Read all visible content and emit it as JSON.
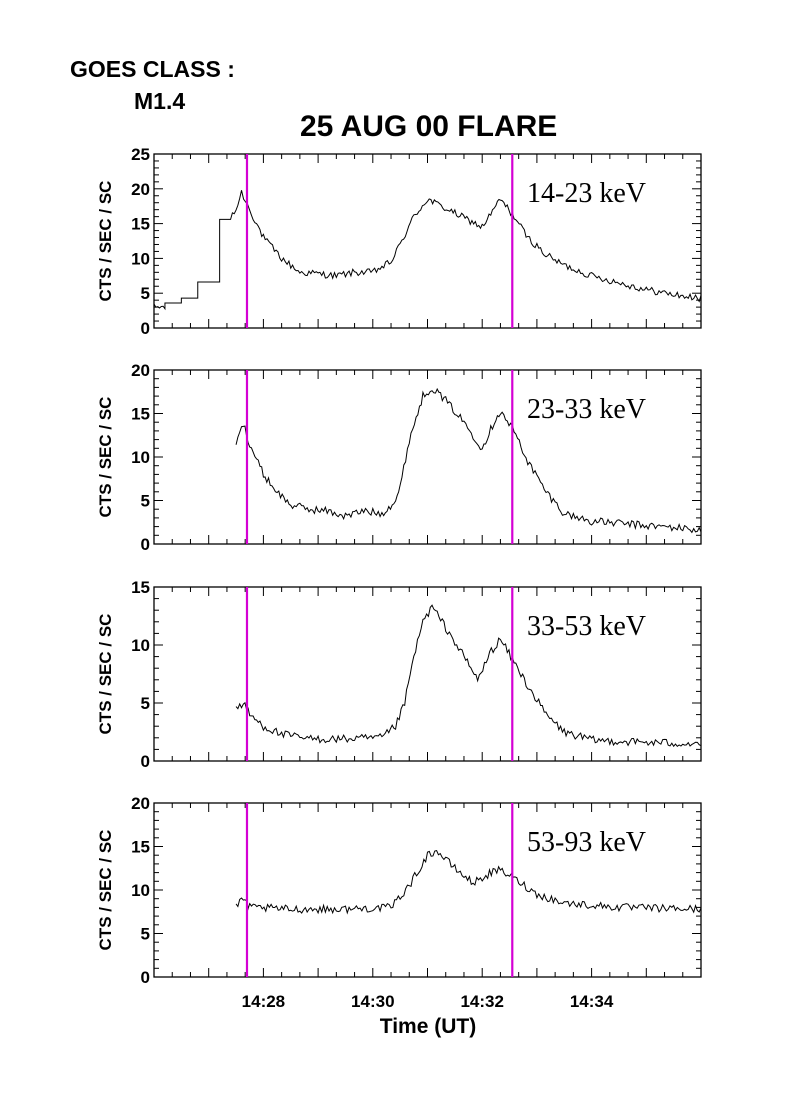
{
  "header": {
    "goes_label": "GOES CLASS :",
    "goes_class": "M1.4",
    "title": "25 AUG 00 FLARE"
  },
  "chart_data": {
    "type": "line",
    "x_unit": "minutes (UT)",
    "xlim": [
      "14:26:00",
      "14:36:00"
    ],
    "x_tick_labels": [
      "14:28",
      "14:30",
      "14:32",
      "14:34"
    ],
    "xlabel": "Time (UT)",
    "ylabel": "CTS / SEC / SC",
    "marker_color": "#d400d4",
    "vertical_markers_ut": [
      "14:27:42",
      "14:32:33"
    ],
    "grid": false,
    "panels": [
      {
        "band": "14-23 keV",
        "ylim": [
          0,
          25
        ],
        "yticks": [
          0,
          5,
          10,
          15,
          20,
          25
        ],
        "noise": 0.5,
        "series": [
          {
            "t": "14:26:00",
            "v": 3.0
          },
          {
            "t": "14:26:12",
            "v": 3.0
          },
          {
            "t": "14:26:12",
            "v": 3.6
          },
          {
            "t": "14:26:30",
            "v": 3.6
          },
          {
            "t": "14:26:30",
            "v": 4.3
          },
          {
            "t": "14:26:48",
            "v": 4.3
          },
          {
            "t": "14:26:48",
            "v": 6.6
          },
          {
            "t": "14:27:12",
            "v": 6.6
          },
          {
            "t": "14:27:12",
            "v": 15.6
          },
          {
            "t": "14:27:24",
            "v": 15.6
          },
          {
            "t": "14:27:30",
            "v": 17.0
          },
          {
            "t": "14:27:36",
            "v": 19.5
          },
          {
            "t": "14:27:45",
            "v": 17.0
          },
          {
            "t": "14:28:00",
            "v": 13.0
          },
          {
            "t": "14:28:20",
            "v": 10.0
          },
          {
            "t": "14:28:40",
            "v": 8.0
          },
          {
            "t": "14:29:00",
            "v": 7.8
          },
          {
            "t": "14:29:20",
            "v": 7.5
          },
          {
            "t": "14:29:40",
            "v": 8.0
          },
          {
            "t": "14:30:00",
            "v": 8.0
          },
          {
            "t": "14:30:20",
            "v": 9.5
          },
          {
            "t": "14:30:30",
            "v": 12.0
          },
          {
            "t": "14:30:45",
            "v": 16.0
          },
          {
            "t": "14:31:00",
            "v": 18.5
          },
          {
            "t": "14:31:15",
            "v": 17.5
          },
          {
            "t": "14:31:30",
            "v": 16.5
          },
          {
            "t": "14:31:45",
            "v": 15.5
          },
          {
            "t": "14:32:00",
            "v": 14.5
          },
          {
            "t": "14:32:15",
            "v": 17.5
          },
          {
            "t": "14:32:20",
            "v": 18.5
          },
          {
            "t": "14:32:35",
            "v": 16.0
          },
          {
            "t": "14:32:50",
            "v": 13.0
          },
          {
            "t": "14:33:10",
            "v": 10.5
          },
          {
            "t": "14:33:30",
            "v": 9.0
          },
          {
            "t": "14:34:00",
            "v": 7.5
          },
          {
            "t": "14:34:30",
            "v": 6.5
          },
          {
            "t": "14:35:00",
            "v": 5.5
          },
          {
            "t": "14:35:30",
            "v": 4.8
          },
          {
            "t": "14:36:00",
            "v": 4.2
          }
        ]
      },
      {
        "band": "23-33 keV",
        "ylim": [
          0,
          20
        ],
        "yticks": [
          0,
          5,
          10,
          15,
          20
        ],
        "noise": 0.45,
        "series": [
          {
            "t": "14:27:30",
            "v": 11.5
          },
          {
            "t": "14:27:38",
            "v": 13.8
          },
          {
            "t": "14:27:45",
            "v": 11.5
          },
          {
            "t": "14:28:00",
            "v": 8.0
          },
          {
            "t": "14:28:15",
            "v": 6.0
          },
          {
            "t": "14:28:30",
            "v": 4.5
          },
          {
            "t": "14:28:50",
            "v": 4.0
          },
          {
            "t": "14:29:10",
            "v": 3.8
          },
          {
            "t": "14:29:30",
            "v": 3.2
          },
          {
            "t": "14:29:50",
            "v": 3.8
          },
          {
            "t": "14:30:10",
            "v": 3.5
          },
          {
            "t": "14:30:25",
            "v": 5.0
          },
          {
            "t": "14:30:30",
            "v": 6.5
          },
          {
            "t": "14:30:40",
            "v": 12.0
          },
          {
            "t": "14:30:55",
            "v": 17.0
          },
          {
            "t": "14:31:05",
            "v": 18.0
          },
          {
            "t": "14:31:20",
            "v": 16.5
          },
          {
            "t": "14:31:40",
            "v": 14.0
          },
          {
            "t": "14:32:00",
            "v": 11.0
          },
          {
            "t": "14:32:15",
            "v": 14.5
          },
          {
            "t": "14:32:20",
            "v": 15.2
          },
          {
            "t": "14:32:35",
            "v": 13.0
          },
          {
            "t": "14:32:50",
            "v": 9.5
          },
          {
            "t": "14:33:10",
            "v": 6.0
          },
          {
            "t": "14:33:30",
            "v": 3.5
          },
          {
            "t": "14:34:00",
            "v": 2.6
          },
          {
            "t": "14:34:30",
            "v": 2.4
          },
          {
            "t": "14:35:00",
            "v": 2.1
          },
          {
            "t": "14:35:30",
            "v": 1.9
          },
          {
            "t": "14:36:00",
            "v": 1.6
          }
        ]
      },
      {
        "band": "33-53 keV",
        "ylim": [
          0,
          15
        ],
        "yticks": [
          0,
          5,
          10,
          15
        ],
        "noise": 0.35,
        "series": [
          {
            "t": "14:27:30",
            "v": 4.5
          },
          {
            "t": "14:27:38",
            "v": 5.0
          },
          {
            "t": "14:27:45",
            "v": 4.0
          },
          {
            "t": "14:28:00",
            "v": 3.0
          },
          {
            "t": "14:28:20",
            "v": 2.3
          },
          {
            "t": "14:28:50",
            "v": 1.9
          },
          {
            "t": "14:29:30",
            "v": 1.9
          },
          {
            "t": "14:30:10",
            "v": 2.0
          },
          {
            "t": "14:30:25",
            "v": 3.0
          },
          {
            "t": "14:30:35",
            "v": 5.0
          },
          {
            "t": "14:30:45",
            "v": 9.0
          },
          {
            "t": "14:30:55",
            "v": 12.0
          },
          {
            "t": "14:31:05",
            "v": 13.3
          },
          {
            "t": "14:31:20",
            "v": 11.5
          },
          {
            "t": "14:31:40",
            "v": 9.0
          },
          {
            "t": "14:31:55",
            "v": 7.0
          },
          {
            "t": "14:32:10",
            "v": 9.5
          },
          {
            "t": "14:32:20",
            "v": 10.5
          },
          {
            "t": "14:32:35",
            "v": 8.5
          },
          {
            "t": "14:32:50",
            "v": 6.5
          },
          {
            "t": "14:33:10",
            "v": 4.0
          },
          {
            "t": "14:33:30",
            "v": 2.5
          },
          {
            "t": "14:34:00",
            "v": 1.8
          },
          {
            "t": "14:35:00",
            "v": 1.6
          },
          {
            "t": "14:36:00",
            "v": 1.5
          }
        ]
      },
      {
        "band": "53-93 keV",
        "ylim": [
          0,
          20
        ],
        "yticks": [
          0,
          5,
          10,
          15,
          20
        ],
        "noise": 0.45,
        "series": [
          {
            "t": "14:27:30",
            "v": 8.0
          },
          {
            "t": "14:27:38",
            "v": 9.0
          },
          {
            "t": "14:27:45",
            "v": 8.0
          },
          {
            "t": "14:28:30",
            "v": 7.8
          },
          {
            "t": "14:29:30",
            "v": 7.8
          },
          {
            "t": "14:30:20",
            "v": 8.0
          },
          {
            "t": "14:30:40",
            "v": 10.5
          },
          {
            "t": "14:31:00",
            "v": 14.0
          },
          {
            "t": "14:31:10",
            "v": 14.5
          },
          {
            "t": "14:31:30",
            "v": 12.5
          },
          {
            "t": "14:31:50",
            "v": 10.8
          },
          {
            "t": "14:32:10",
            "v": 12.0
          },
          {
            "t": "14:32:20",
            "v": 12.3
          },
          {
            "t": "14:32:40",
            "v": 11.0
          },
          {
            "t": "14:33:00",
            "v": 9.5
          },
          {
            "t": "14:33:30",
            "v": 8.5
          },
          {
            "t": "14:34:30",
            "v": 8.0
          },
          {
            "t": "14:36:00",
            "v": 7.8
          }
        ]
      }
    ]
  }
}
